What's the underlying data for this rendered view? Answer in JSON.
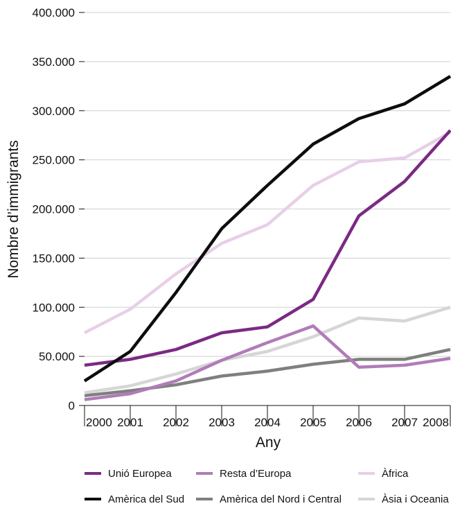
{
  "chart_data": {
    "type": "line",
    "xlabel": "Any",
    "ylabel": "Nombre d’immigrants",
    "ylim": [
      0,
      400000
    ],
    "yticks": [
      0,
      50000,
      100000,
      150000,
      200000,
      250000,
      300000,
      350000,
      400000
    ],
    "ytick_labels": [
      "0",
      "50.000",
      "100.000",
      "150.000",
      "200.000",
      "250.000",
      "300.000",
      "350.000",
      "400.000"
    ],
    "x": [
      2000,
      2001,
      2002,
      2003,
      2004,
      2005,
      2006,
      2007,
      2008
    ],
    "x_tick_labels": [
      "2000",
      "2001",
      "2002",
      "2003",
      "2004",
      "2005",
      "2006",
      "2007",
      "2008"
    ],
    "grid": "horizontal",
    "legend_position": "bottom",
    "series": [
      {
        "name": "Unió Europea",
        "color": "#7b2a84",
        "values": [
          41000,
          47000,
          57000,
          74000,
          80000,
          108000,
          193000,
          228000,
          280000
        ]
      },
      {
        "name": "Resta d’Europa",
        "color": "#b07cb8",
        "values": [
          6000,
          12000,
          25000,
          46000,
          64000,
          81000,
          39000,
          41000,
          48000
        ]
      },
      {
        "name": "Àfrica",
        "color": "#e8cfe8",
        "values": [
          74000,
          98000,
          134000,
          165000,
          184000,
          224000,
          248000,
          252000,
          278000
        ]
      },
      {
        "name": "Amèrica del Sud",
        "color": "#0d0d0d",
        "values": [
          25000,
          55000,
          115000,
          180000,
          224000,
          266000,
          292000,
          307000,
          335000
        ]
      },
      {
        "name": "Amèrica del Nord i Central",
        "color": "#7f7f7f",
        "values": [
          10000,
          15000,
          21000,
          30000,
          35000,
          42000,
          47000,
          47000,
          57000
        ]
      },
      {
        "name": "Àsia i Oceania",
        "color": "#d6d6d6",
        "values": [
          13000,
          20000,
          32000,
          46000,
          55000,
          70000,
          89000,
          86000,
          100000
        ]
      }
    ]
  }
}
